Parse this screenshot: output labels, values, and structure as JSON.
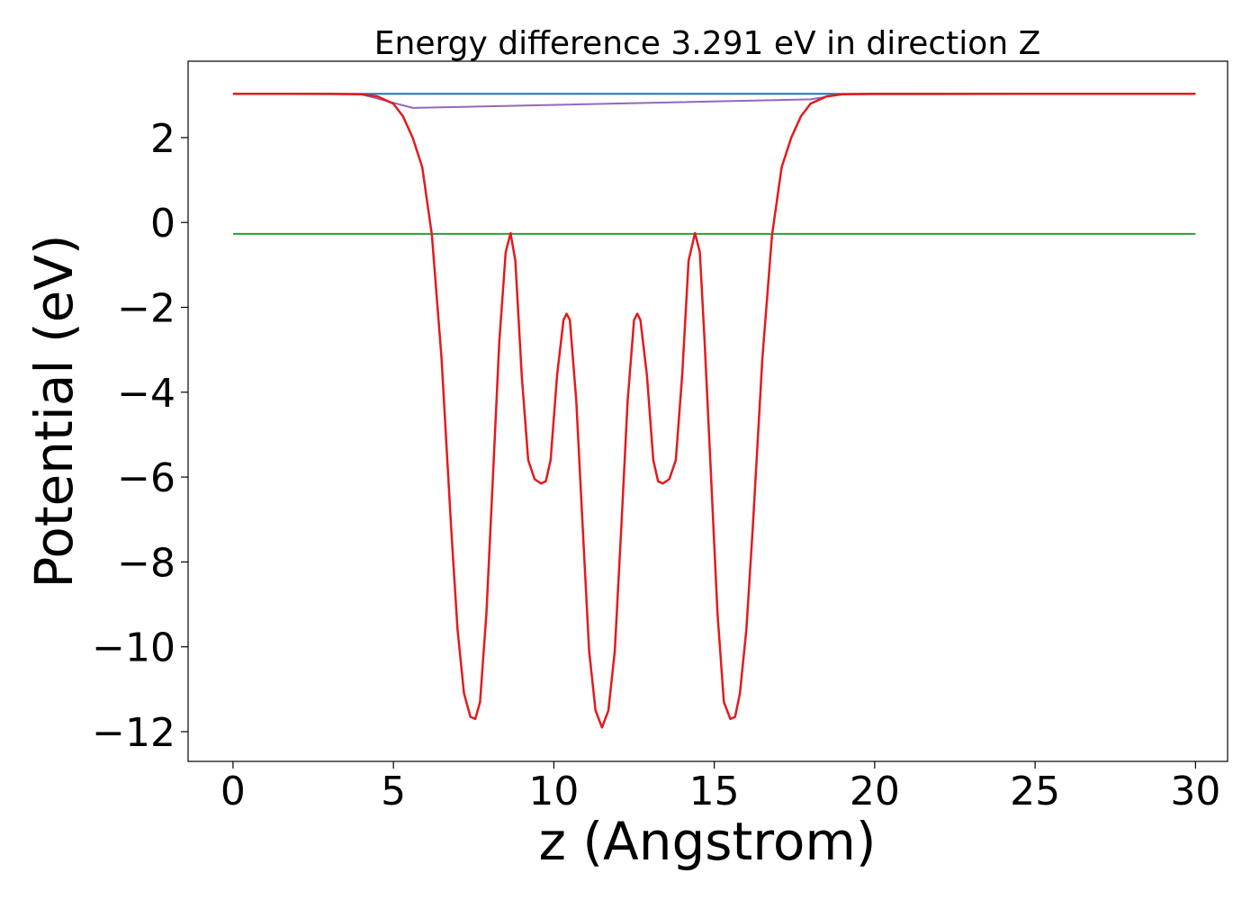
{
  "chart_data": {
    "type": "line",
    "title": "Energy difference 3.291 eV in direction Z",
    "xlabel": "z (Angstrom)",
    "ylabel": "Potential (eV)",
    "xlim": [
      -1.4,
      31.0
    ],
    "ylim": [
      -12.7,
      3.8
    ],
    "xticks": [
      0,
      5,
      10,
      15,
      20,
      25,
      30
    ],
    "xtick_labels": [
      "0",
      "5",
      "10",
      "15",
      "20",
      "25",
      "30"
    ],
    "yticks": [
      2,
      0,
      -2,
      -4,
      -6,
      -8,
      -10,
      -12
    ],
    "ytick_labels": [
      "2",
      "0",
      "−2",
      "−4",
      "−6",
      "−8",
      "−10",
      "−12"
    ],
    "grid": false,
    "legend": "none",
    "series": [
      {
        "color": "#1f77b4",
        "x": [
          0,
          30
        ],
        "y": [
          3.03,
          3.03
        ]
      },
      {
        "color": "#2ca02c",
        "x": [
          0,
          30
        ],
        "y": [
          -0.27,
          -0.27
        ]
      },
      {
        "color": "#9467bd",
        "x": [
          0,
          4,
          5.6,
          18.0,
          19,
          30
        ],
        "y": [
          3.03,
          3.02,
          2.7,
          2.9,
          3.02,
          3.03
        ]
      },
      {
        "color": "#e41a1c",
        "x": [
          0,
          3.0,
          4.0,
          4.5,
          5.0,
          5.3,
          5.6,
          5.9,
          6.2,
          6.5,
          6.8,
          7.0,
          7.2,
          7.4,
          7.55,
          7.7,
          7.9,
          8.1,
          8.3,
          8.5,
          8.65,
          8.8,
          9.0,
          9.2,
          9.4,
          9.6,
          9.75,
          9.9,
          10.1,
          10.3,
          10.4,
          10.5,
          10.7,
          10.9,
          11.1,
          11.3,
          11.5,
          11.7,
          11.9,
          12.1,
          12.3,
          12.5,
          12.6,
          12.7,
          12.9,
          13.1,
          13.25,
          13.4,
          13.6,
          13.8,
          14.0,
          14.2,
          14.4,
          14.55,
          14.7,
          14.9,
          15.1,
          15.3,
          15.5,
          15.65,
          15.8,
          16.0,
          16.2,
          16.5,
          16.8,
          17.1,
          17.4,
          17.7,
          18.0,
          18.5,
          19.0,
          20.0,
          30.0
        ],
        "y": [
          3.03,
          3.03,
          3.02,
          2.97,
          2.8,
          2.5,
          2.0,
          1.3,
          -0.3,
          -3.2,
          -7.2,
          -9.6,
          -11.1,
          -11.65,
          -11.7,
          -11.3,
          -9.2,
          -6.0,
          -2.8,
          -0.7,
          -0.25,
          -0.9,
          -3.6,
          -5.6,
          -6.05,
          -6.15,
          -6.1,
          -5.6,
          -3.6,
          -2.3,
          -2.15,
          -2.3,
          -4.2,
          -7.2,
          -10.1,
          -11.5,
          -11.9,
          -11.5,
          -10.1,
          -7.2,
          -4.2,
          -2.3,
          -2.15,
          -2.3,
          -3.6,
          -5.6,
          -6.1,
          -6.15,
          -6.05,
          -5.6,
          -3.6,
          -0.9,
          -0.25,
          -0.7,
          -2.8,
          -6.0,
          -9.2,
          -11.3,
          -11.7,
          -11.65,
          -11.1,
          -9.6,
          -7.2,
          -3.2,
          -0.3,
          1.3,
          2.0,
          2.5,
          2.8,
          2.97,
          3.02,
          3.03,
          3.03
        ]
      }
    ]
  }
}
